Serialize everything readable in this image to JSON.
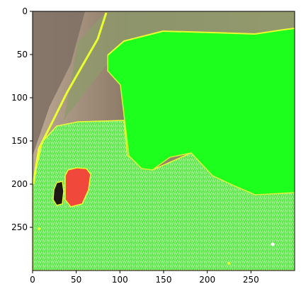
{
  "figure": {
    "type": "image-plot",
    "x_ticks": [
      "0",
      "50",
      "100",
      "150",
      "200",
      "250"
    ],
    "y_ticks": [
      "0",
      "50",
      "100",
      "150",
      "200",
      "250"
    ],
    "xlim": [
      0,
      300
    ],
    "ylim": [
      300,
      0
    ],
    "colors": {
      "mask_green": "#22ff22",
      "grass_green": "#59e84a",
      "outline_yellow": "#e9ff2f",
      "dirt_brown": "#8a7a62",
      "tree_gray": "#7a6a5c",
      "red_region": "#f0493c"
    }
  }
}
